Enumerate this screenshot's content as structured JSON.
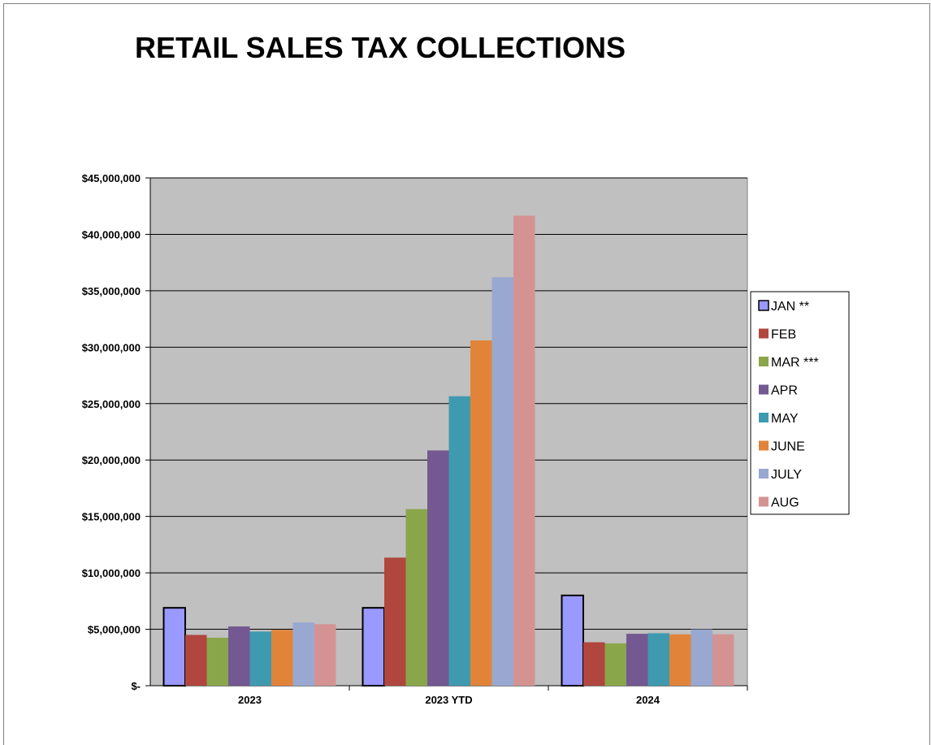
{
  "chart_data": {
    "type": "bar",
    "title": "RETAIL SALES TAX COLLECTIONS",
    "xlabel": "",
    "ylabel": "",
    "categories": [
      "2023",
      "2023 YTD",
      "2024"
    ],
    "ylim": [
      0,
      45000000
    ],
    "y_ticks": [
      0,
      5000000,
      10000000,
      15000000,
      20000000,
      25000000,
      30000000,
      35000000,
      40000000,
      45000000
    ],
    "y_tick_labels": [
      "$-",
      "$5,000,000",
      "$10,000,000",
      "$15,000,000",
      "$20,000,000",
      "$25,000,000",
      "$30,000,000",
      "$35,000,000",
      "$40,000,000",
      "$45,000,000"
    ],
    "grid": true,
    "legend_position": "right",
    "series": [
      {
        "name": "JAN **",
        "color": "#9999FF",
        "outlined": true,
        "values": [
          6900000,
          6900000,
          8000000
        ]
      },
      {
        "name": "FEB",
        "color": "#B0463E",
        "values": [
          4500000,
          11350000,
          3850000
        ]
      },
      {
        "name": "MAR ***",
        "color": "#8AA64A",
        "values": [
          4250000,
          15650000,
          3750000
        ]
      },
      {
        "name": "APR",
        "color": "#735892",
        "values": [
          5250000,
          20850000,
          4600000
        ]
      },
      {
        "name": "MAY",
        "color": "#3F9AB0",
        "values": [
          4800000,
          25650000,
          4650000
        ]
      },
      {
        "name": "JUNE",
        "color": "#E1843A",
        "values": [
          4950000,
          30600000,
          4550000
        ]
      },
      {
        "name": "JULY",
        "color": "#98A8D1",
        "values": [
          5600000,
          36200000,
          5000000
        ]
      },
      {
        "name": "AUG",
        "color": "#D49392",
        "values": [
          5450000,
          41650000,
          4550000
        ]
      }
    ],
    "plot_background": "#C0C0C0"
  }
}
